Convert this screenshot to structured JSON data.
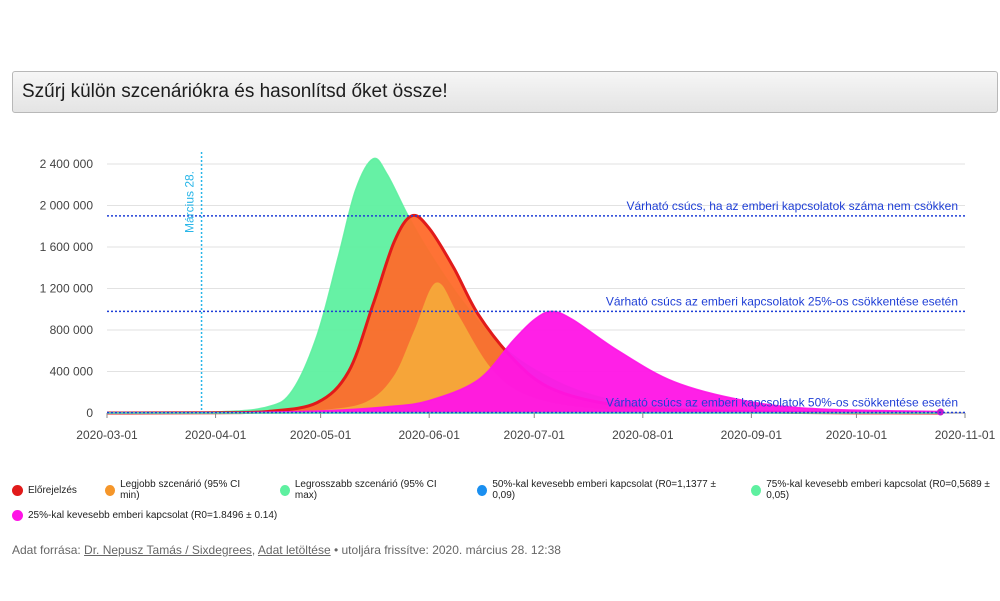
{
  "scenario_selector": {
    "label": "Szűrj külön szcenáriókra és hasonlítsd őket össze!"
  },
  "chart_data": {
    "type": "area",
    "title": "",
    "xlabel": "",
    "ylabel": "",
    "x_ticks": [
      "2020-03-01",
      "2020-04-01",
      "2020-05-01",
      "2020-06-01",
      "2020-07-01",
      "2020-08-01",
      "2020-09-01",
      "2020-10-01",
      "2020-11-01"
    ],
    "y_ticks": [
      "0",
      "400 000",
      "800 000",
      "1 200 000",
      "1 600 000",
      "2 000 000",
      "2 400 000"
    ],
    "ylim": [
      0,
      2400000
    ],
    "xlim": [
      "2020-03-01",
      "2020-11-01"
    ],
    "grid": "horizontal",
    "vertical_marker": {
      "date": "2020-03-28",
      "label": "Március 28."
    },
    "reference_lines": [
      {
        "value": 1900000,
        "label": "Várható csúcs, ha az emberi kapcsolatok száma nem csökken"
      },
      {
        "value": 980000,
        "label": "Várható csúcs az emberi kapcsolatok 25%-os csökkentése esetén"
      },
      {
        "value": 5000,
        "label": "Várható csúcs az emberi kapcsolatok 50%-os csökkentése esetén"
      }
    ],
    "series": [
      {
        "name": "Legrosszabb szcenárió (95% CI max)",
        "color": "#5ef0a0",
        "points": [
          [
            "2020-03-01",
            0
          ],
          [
            "2020-04-01",
            10000
          ],
          [
            "2020-04-16",
            60000
          ],
          [
            "2020-04-23",
            220000
          ],
          [
            "2020-04-30",
            750000
          ],
          [
            "2020-05-06",
            1500000
          ],
          [
            "2020-05-11",
            2150000
          ],
          [
            "2020-05-16",
            2450000
          ],
          [
            "2020-05-20",
            2300000
          ],
          [
            "2020-05-26",
            1900000
          ],
          [
            "2020-06-01",
            1550000
          ],
          [
            "2020-06-10",
            1100000
          ],
          [
            "2020-06-20",
            700000
          ],
          [
            "2020-07-01",
            420000
          ],
          [
            "2020-07-15",
            200000
          ],
          [
            "2020-08-01",
            80000
          ],
          [
            "2020-09-01",
            12000
          ],
          [
            "2020-10-25",
            0
          ]
        ]
      },
      {
        "name": "Előrejelzés",
        "color": "#ff6a2a",
        "line": "#e11a1a",
        "points": [
          [
            "2020-03-01",
            0
          ],
          [
            "2020-04-01",
            3000
          ],
          [
            "2020-04-16",
            15000
          ],
          [
            "2020-04-30",
            100000
          ],
          [
            "2020-05-09",
            400000
          ],
          [
            "2020-05-16",
            1050000
          ],
          [
            "2020-05-22",
            1650000
          ],
          [
            "2020-05-27",
            1900000
          ],
          [
            "2020-06-01",
            1780000
          ],
          [
            "2020-06-08",
            1400000
          ],
          [
            "2020-06-15",
            950000
          ],
          [
            "2020-06-25",
            520000
          ],
          [
            "2020-07-05",
            250000
          ],
          [
            "2020-07-20",
            100000
          ],
          [
            "2020-08-10",
            30000
          ],
          [
            "2020-09-15",
            5000
          ],
          [
            "2020-10-25",
            0
          ]
        ]
      },
      {
        "name": "Legjobb szcenárió (95% CI min)",
        "color": "#f5a83a",
        "points": [
          [
            "2020-03-01",
            0
          ],
          [
            "2020-04-15",
            0
          ],
          [
            "2020-05-01",
            20000
          ],
          [
            "2020-05-14",
            100000
          ],
          [
            "2020-05-22",
            350000
          ],
          [
            "2020-05-28",
            800000
          ],
          [
            "2020-06-03",
            1250000
          ],
          [
            "2020-06-09",
            950000
          ],
          [
            "2020-06-18",
            450000
          ],
          [
            "2020-06-28",
            180000
          ],
          [
            "2020-07-15",
            50000
          ],
          [
            "2020-08-15",
            8000
          ],
          [
            "2020-10-25",
            0
          ]
        ]
      },
      {
        "name": "25%-kal kevesebb emberi kapcsolat (R0=1.8496 ± 0.14)",
        "color": "#ff14e6",
        "points": [
          [
            "2020-03-01",
            0
          ],
          [
            "2020-04-01",
            2000
          ],
          [
            "2020-05-01",
            20000
          ],
          [
            "2020-05-20",
            60000
          ],
          [
            "2020-06-01",
            120000
          ],
          [
            "2020-06-15",
            320000
          ],
          [
            "2020-06-25",
            700000
          ],
          [
            "2020-07-01",
            900000
          ],
          [
            "2020-07-06",
            980000
          ],
          [
            "2020-07-12",
            900000
          ],
          [
            "2020-07-25",
            600000
          ],
          [
            "2020-08-10",
            300000
          ],
          [
            "2020-08-30",
            120000
          ],
          [
            "2020-09-20",
            40000
          ],
          [
            "2020-10-25",
            15000
          ]
        ]
      },
      {
        "name": "50%-kal kevesebb emberi kapcsolat (R0=1,1377 ± 0,09)",
        "color": "#1a7fe0",
        "points": [
          [
            "2020-03-01",
            0
          ],
          [
            "2020-10-25",
            0
          ]
        ]
      },
      {
        "name": "75%-kal kevesebb emberi kapcsolat (R0=0,5689 ± 0,05)",
        "color": "#5ef0a0",
        "points": [
          [
            "2020-03-01",
            0
          ],
          [
            "2020-10-25",
            0
          ]
        ]
      }
    ]
  },
  "legend": [
    {
      "label": "Előrejelzés",
      "color": "#e11a1a"
    },
    {
      "label": "Legjobb szcenárió (95% CI min)",
      "color": "#f5962a"
    },
    {
      "label": "Legrosszabb szcenárió (95% CI max)",
      "color": "#5ef0a0"
    },
    {
      "label": "50%-kal kevesebb emberi kapcsolat (R0=1,1377 ± 0,09)",
      "color": "#1a8ff0"
    },
    {
      "label": "75%-kal kevesebb emberi kapcsolat (R0=0,5689 ± 0,05)",
      "color": "#5ef0a0"
    },
    {
      "label": "25%-kal kevesebb emberi kapcsolat (R0=1.8496 ± 0.14)",
      "color": "#ff14e6"
    }
  ],
  "footer": {
    "prefix": "Adat forrása: ",
    "source_link": "Dr. Nepusz Tamás / Sixdegrees",
    "separator": ", ",
    "download_link": "Adat letöltése",
    "updated": " • utoljára frissítve: 2020. március 28. 12:38"
  }
}
